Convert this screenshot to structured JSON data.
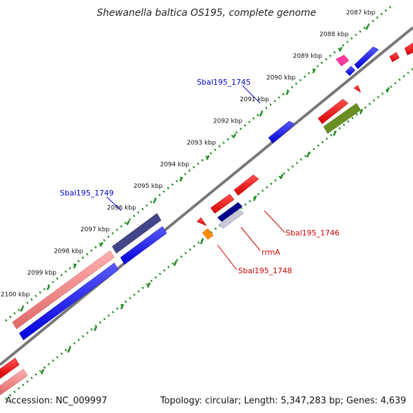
{
  "title": "Shewanella baltica OS195, complete genome",
  "footer": {
    "accession": "Accession: NC_009997",
    "summary": "Topology: circular; Length: 5,347,283 bp; Genes: 4,639"
  },
  "kbp_labels": [
    "2087 kbp",
    "2088 kbp",
    "2089 kbp",
    "2090 kbp",
    "2091 kbp",
    "2092 kbp",
    "2093 kbp",
    "2094 kbp",
    "2095 kbp",
    "2096 kbp",
    "2097 kbp",
    "2098 kbp",
    "2099 kbp",
    "2100 kbp"
  ],
  "gene_labels": {
    "sbal1745": "Sbal195_1745",
    "sbal1749": "Sbal195_1749",
    "sbal1746": "Sbal195_1746",
    "rrmA": "rrmA",
    "sbal1748": "Sbal195_1748"
  },
  "colors": {
    "backbone": "#7a7a7a",
    "tick": "#1a8a1a",
    "forward_cds": "#0000ff",
    "reverse_cds": "#ff0000",
    "highlight_pink": "#f08080",
    "highlight_navy": "#3a3a8a",
    "highlight_olive": "#6b8e23",
    "magenta": "#ff1493",
    "orange": "#ff8c00",
    "navy": "#00008b",
    "label_blue": "#0000cc",
    "label_red": "#cc0000"
  }
}
